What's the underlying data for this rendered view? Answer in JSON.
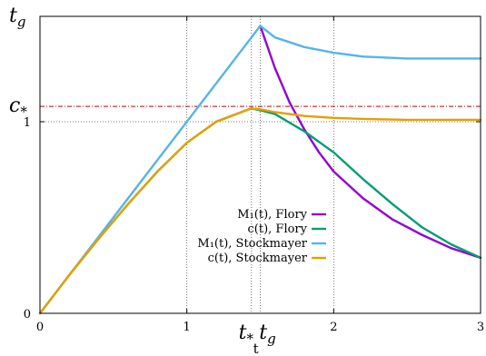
{
  "chart_data": {
    "type": "line",
    "title": "",
    "xlabel": "t",
    "ylabel": "",
    "xlim": [
      0,
      3
    ],
    "ylim": [
      0,
      1.55
    ],
    "x_ticks": [
      {
        "value": 0,
        "label": "0"
      },
      {
        "value": 1,
        "label": "1"
      },
      {
        "value": 2,
        "label": "2"
      },
      {
        "value": 3,
        "label": "3"
      }
    ],
    "y_ticks": [
      {
        "value": 0,
        "label": "0"
      },
      {
        "value": 1,
        "label": "1"
      }
    ],
    "special_x": [
      {
        "value": 1.44,
        "label": "t",
        "sub": "*"
      },
      {
        "value": 1.5,
        "label": "t",
        "sub": "g"
      }
    ],
    "special_y": [
      {
        "value": 1.55,
        "label": "t",
        "sub": "g"
      },
      {
        "value": 1.08,
        "label": "c",
        "sub": "*"
      }
    ],
    "reference_lines": [
      {
        "orientation": "horizontal",
        "value": 1.08,
        "style": "dash-dot",
        "color": "#cc0000"
      }
    ],
    "grid": "dotted at x = 1, 1.44, 1.5, 2 and y = 1",
    "legend_position": "center-right",
    "series": [
      {
        "name": "M₁(t), Flory",
        "color": "#9400d3",
        "x": [
          1.5,
          1.6,
          1.7,
          1.8,
          1.9,
          2.0,
          2.2,
          2.4,
          2.6,
          2.8,
          3.0
        ],
        "y": [
          1.5,
          1.28,
          1.1,
          0.96,
          0.84,
          0.74,
          0.6,
          0.49,
          0.41,
          0.34,
          0.29
        ]
      },
      {
        "name": "c(t), Flory",
        "color": "#009e73",
        "x": [
          0,
          0.2,
          0.4,
          0.6,
          0.8,
          1.0,
          1.2,
          1.44,
          1.5,
          1.6,
          1.8,
          2.0,
          2.2,
          2.4,
          2.6,
          2.8,
          3.0
        ],
        "y": [
          0,
          0.2,
          0.39,
          0.57,
          0.74,
          0.89,
          1.0,
          1.07,
          1.06,
          1.04,
          0.95,
          0.84,
          0.7,
          0.57,
          0.45,
          0.36,
          0.29
        ]
      },
      {
        "name": "M₁(t), Stockmayer",
        "color": "#56b4e9",
        "x": [
          0,
          0.5,
          1.0,
          1.5,
          1.6,
          1.8,
          2.0,
          2.2,
          2.5,
          3.0
        ],
        "y": [
          0,
          0.5,
          1.0,
          1.5,
          1.44,
          1.39,
          1.36,
          1.34,
          1.33,
          1.33
        ]
      },
      {
        "name": "c(t), Stockmayer",
        "color": "#e69f00",
        "x": [
          0,
          0.2,
          0.4,
          0.6,
          0.8,
          1.0,
          1.2,
          1.44,
          1.5,
          1.6,
          1.8,
          2.0,
          2.2,
          2.5,
          3.0
        ],
        "y": [
          0,
          0.2,
          0.39,
          0.57,
          0.74,
          0.89,
          1.0,
          1.07,
          1.065,
          1.05,
          1.03,
          1.02,
          1.015,
          1.01,
          1.01
        ]
      }
    ]
  }
}
